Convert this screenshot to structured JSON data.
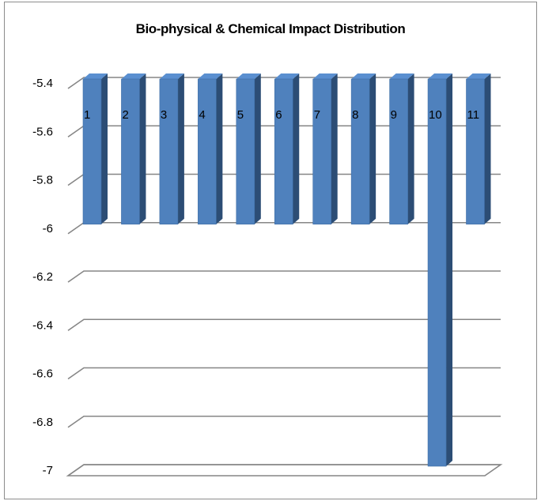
{
  "chart_data": {
    "type": "bar",
    "title": "Bio-physical & Chemical Impact Distribution",
    "xlabel": "",
    "ylabel": "",
    "categories": [
      "1",
      "2",
      "3",
      "4",
      "5",
      "6",
      "7",
      "8",
      "9",
      "10",
      "11"
    ],
    "values": [
      -6,
      -6,
      -6,
      -6,
      -6,
      -6,
      -6,
      -6,
      -6,
      -7,
      -6
    ],
    "ylim": [
      -7,
      -5.4
    ],
    "yticks": [
      -5.4,
      -5.6,
      -5.8,
      -6,
      -6.2,
      -6.4,
      -6.6,
      -6.8,
      -7
    ],
    "ytick_labels": [
      "-5.4",
      "-5.6",
      "-5.8",
      "-6",
      "-6.2",
      "-6.4",
      "-6.6",
      "-6.8",
      "-7"
    ],
    "grid": true,
    "legend": "none",
    "style": "3d-column",
    "colors": {
      "bar_front": "#4f81bd",
      "bar_side": "#2c4d75",
      "bar_top": "#5a8fd0",
      "gridline": "#868686",
      "border": "#8c8c8c"
    }
  }
}
